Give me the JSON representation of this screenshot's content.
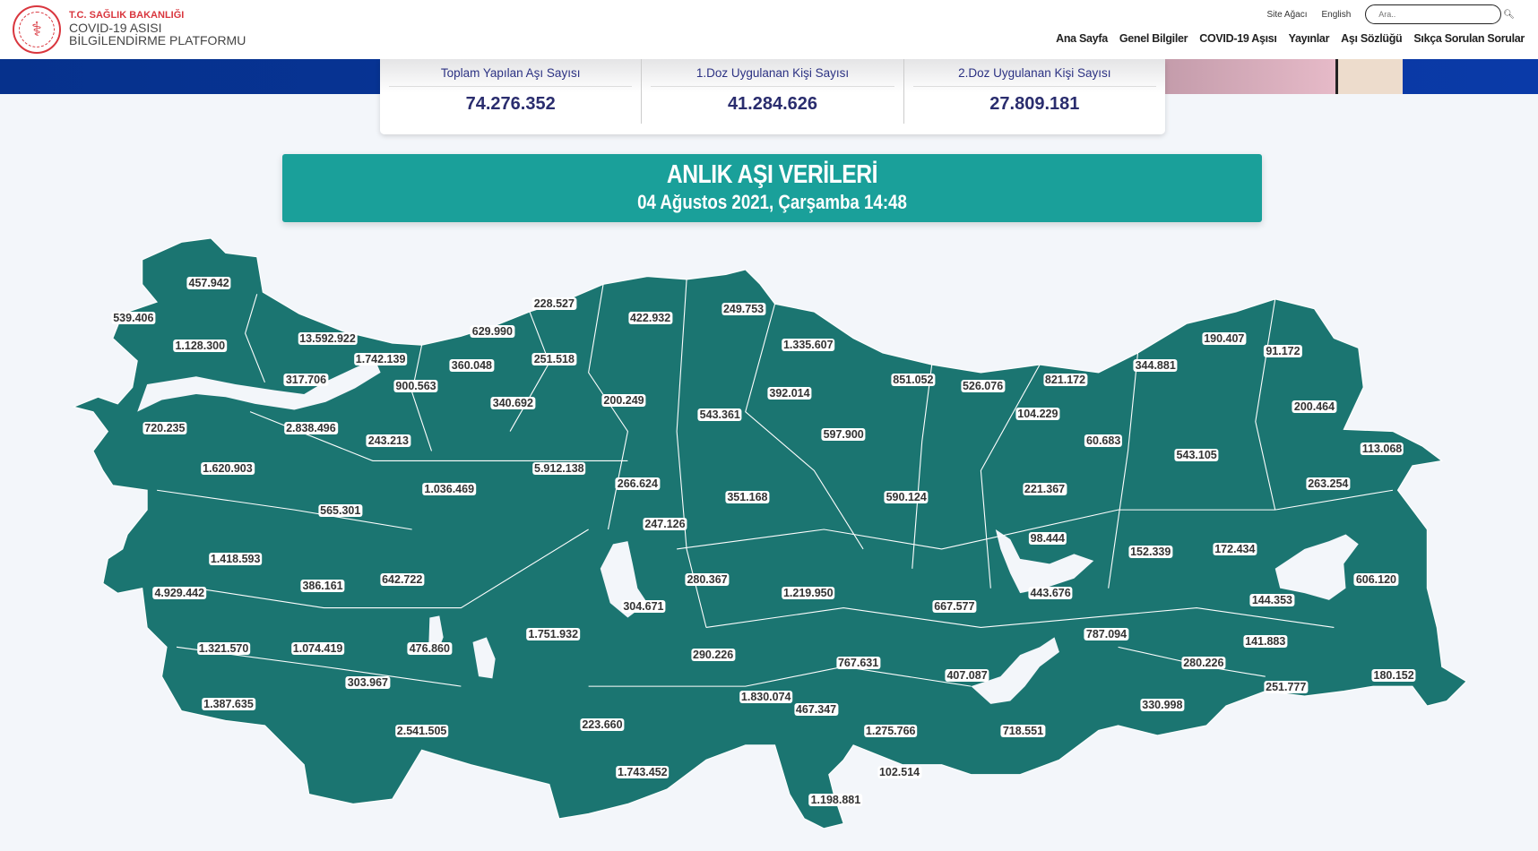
{
  "header": {
    "ministry": "T.C. SAĞLIK BAKANLIĞI",
    "title_line1": "COVID-19 ASISI",
    "title_line2": "BİLGİLENDİRME PLATFORMU",
    "top_links": [
      "Site Ağacı",
      "English"
    ],
    "search_placeholder": "Ara..",
    "nav": [
      "Ana Sayfa",
      "Genel Bilgiler",
      "COVID-19 Aşısı",
      "Yayınlar",
      "Aşı Sözlüğü",
      "Sıkça Sorulan Sorular"
    ]
  },
  "stats": [
    {
      "label": "Toplam Yapılan Aşı Sayısı",
      "value": "74.276.352"
    },
    {
      "label": "1.Doz Uygulanan Kişi Sayısı",
      "value": "41.284.626"
    },
    {
      "label": "2.Doz Uygulanan Kişi Sayısı",
      "value": "27.809.181"
    }
  ],
  "banner": {
    "title": "ANLIK AŞI VERİLERİ",
    "datetime": "04 Ağustos 2021, Çarşamba 14:48"
  },
  "colors": {
    "map_fill": "#1b7571",
    "banner": "#1aa09a",
    "brand_red": "#d9363e",
    "stat_value": "#2a2d6e"
  },
  "map_labels": [
    "457.942",
    "539.406",
    "1.128.300",
    "13.592.922",
    "1.742.139",
    "317.706",
    "900.563",
    "629.990",
    "360.048",
    "228.527",
    "251.518",
    "422.932",
    "249.753",
    "1.335.607",
    "340.692",
    "200.249",
    "543.361",
    "392.014",
    "851.052",
    "526.076",
    "821.172",
    "344.881",
    "190.407",
    "91.172",
    "200.464",
    "104.229",
    "60.683",
    "543.105",
    "113.068",
    "263.254",
    "720.235",
    "2.838.496",
    "243.213",
    "1.620.903",
    "5.912.138",
    "266.624",
    "597.900",
    "1.036.469",
    "565.301",
    "351.168",
    "590.124",
    "221.367",
    "247.126",
    "98.444",
    "152.339",
    "172.434",
    "1.418.593",
    "4.929.442",
    "386.161",
    "642.722",
    "280.367",
    "304.671",
    "1.219.950",
    "443.676",
    "606.120",
    "144.353",
    "667.577",
    "1.321.570",
    "1.074.419",
    "476.860",
    "1.751.932",
    "290.226",
    "767.631",
    "787.094",
    "141.883",
    "280.226",
    "407.087",
    "303.967",
    "180.152",
    "251.777",
    "1.387.635",
    "1.830.074",
    "467.347",
    "330.998",
    "223.660",
    "2.541.505",
    "718.551",
    "1.275.766",
    "102.514",
    "1.743.452",
    "1.198.881"
  ]
}
